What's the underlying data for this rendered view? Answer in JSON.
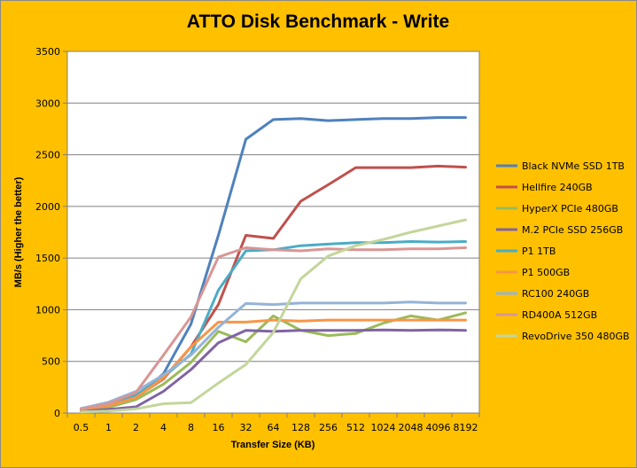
{
  "chart_data": {
    "type": "line",
    "title": "ATTO Disk Benchmark - Write",
    "xlabel": "Transfer Size (KB)",
    "ylabel": "MB/s (Higher the better)",
    "categories": [
      "0.5",
      "1",
      "2",
      "4",
      "8",
      "16",
      "32",
      "64",
      "128",
      "256",
      "512",
      "1024",
      "2048",
      "4096",
      "8192"
    ],
    "ylim": [
      0,
      3500
    ],
    "yticks": [
      0,
      500,
      1000,
      1500,
      2000,
      2500,
      3000,
      3500
    ],
    "grid": "horizontal",
    "legend_position": "right",
    "series": [
      {
        "name": "Black NVMe SSD 1TB",
        "color": "#4F81BD",
        "values": [
          35,
          65,
          155,
          380,
          860,
          1720,
          2650,
          2840,
          2850,
          2830,
          2840,
          2850,
          2850,
          2860,
          2860
        ]
      },
      {
        "name": "Hellfire 240GB",
        "color": "#C0504D",
        "values": [
          35,
          65,
          155,
          330,
          640,
          1050,
          1720,
          1690,
          2050,
          2210,
          2375,
          2375,
          2375,
          2390,
          2380
        ]
      },
      {
        "name": "HyperX PCIe 480GB",
        "color": "#9BBB59",
        "values": [
          30,
          55,
          130,
          280,
          490,
          790,
          690,
          940,
          800,
          750,
          770,
          870,
          940,
          900,
          970
        ]
      },
      {
        "name": "M.2 PCIe SSD 256GB",
        "color": "#8064A2",
        "values": [
          20,
          35,
          60,
          210,
          420,
          680,
          800,
          790,
          800,
          800,
          800,
          805,
          800,
          805,
          800
        ]
      },
      {
        "name": "P1 1TB",
        "color": "#4BACC6",
        "values": [
          45,
          85,
          175,
          350,
          570,
          1190,
          1570,
          1580,
          1620,
          1635,
          1650,
          1650,
          1660,
          1655,
          1660
        ]
      },
      {
        "name": "P1 500GB",
        "color": "#F79646",
        "values": [
          35,
          70,
          150,
          340,
          640,
          880,
          880,
          900,
          890,
          900,
          900,
          900,
          900,
          900,
          900
        ]
      },
      {
        "name": "RC100 240GB",
        "color": "#95B3D7",
        "values": [
          45,
          105,
          210,
          370,
          560,
          830,
          1060,
          1050,
          1065,
          1065,
          1065,
          1065,
          1075,
          1065,
          1065
        ]
      },
      {
        "name": "RD400A 512GB",
        "color": "#D99694",
        "values": [
          40,
          90,
          200,
          560,
          930,
          1510,
          1600,
          1580,
          1570,
          1590,
          1580,
          1580,
          1590,
          1590,
          1600
        ]
      },
      {
        "name": "RevoDrive 350 480GB",
        "color": "#C3D69B",
        "values": [
          10,
          20,
          40,
          90,
          100,
          290,
          470,
          780,
          1300,
          1520,
          1620,
          1680,
          1750,
          1810,
          1870
        ]
      }
    ]
  }
}
